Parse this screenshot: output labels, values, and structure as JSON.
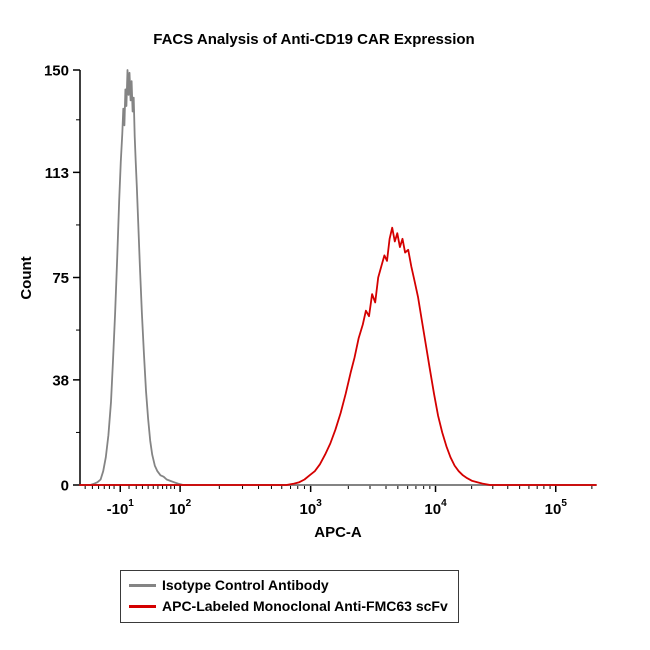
{
  "page": {
    "background": "#ffffff"
  },
  "chart_data": {
    "type": "line",
    "variant": "flow-cytometry-overlaid-histograms",
    "title": "FACS Analysis of Anti-CD19 CAR Expression",
    "xlabel": "APC-A",
    "ylabel": "Count",
    "ylim": [
      0,
      150
    ],
    "grid": "off",
    "legend_position": "bottom",
    "x_axis_scale": "logicle",
    "y_major_ticks": [
      0,
      38,
      75,
      113,
      150
    ],
    "y_minor_ticks": [
      19,
      56,
      94,
      132
    ],
    "x_major_ticks": [
      {
        "frac": 0.078,
        "base": "-10",
        "exp": "1"
      },
      {
        "frac": 0.194,
        "base": "10",
        "exp": "2"
      },
      {
        "frac": 0.447,
        "base": "10",
        "exp": "3"
      },
      {
        "frac": 0.689,
        "base": "10",
        "exp": "4"
      },
      {
        "frac": 0.922,
        "base": "10",
        "exp": "5"
      }
    ],
    "x_minor_ticks": [
      0.01,
      0.024,
      0.036,
      0.047,
      0.057,
      0.066,
      0.095,
      0.109,
      0.121,
      0.132,
      0.142,
      0.151,
      0.16,
      0.168,
      0.176,
      0.183,
      0.27,
      0.315,
      0.346,
      0.371,
      0.391,
      0.408,
      0.422,
      0.435,
      0.52,
      0.562,
      0.593,
      0.616,
      0.635,
      0.651,
      0.666,
      0.678,
      0.759,
      0.8,
      0.829,
      0.852,
      0.87,
      0.886,
      0.899,
      0.911,
      0.992
    ],
    "series": [
      {
        "name": "Isotype Control Antibody",
        "color": "#848484",
        "peak_x_frac": 0.092,
        "peak_count": 150,
        "points": [
          [
            0.0,
            0
          ],
          [
            0.02,
            0
          ],
          [
            0.028,
            0.5
          ],
          [
            0.034,
            1
          ],
          [
            0.04,
            2
          ],
          [
            0.045,
            5
          ],
          [
            0.05,
            10
          ],
          [
            0.055,
            18
          ],
          [
            0.06,
            30
          ],
          [
            0.064,
            45
          ],
          [
            0.068,
            62
          ],
          [
            0.072,
            82
          ],
          [
            0.076,
            103
          ],
          [
            0.079,
            117
          ],
          [
            0.082,
            127
          ],
          [
            0.084,
            136
          ],
          [
            0.086,
            130
          ],
          [
            0.088,
            143
          ],
          [
            0.09,
            137
          ],
          [
            0.092,
            150
          ],
          [
            0.094,
            141
          ],
          [
            0.096,
            149
          ],
          [
            0.098,
            139
          ],
          [
            0.1,
            146
          ],
          [
            0.102,
            135
          ],
          [
            0.104,
            140
          ],
          [
            0.106,
            126
          ],
          [
            0.108,
            117
          ],
          [
            0.11,
            108
          ],
          [
            0.113,
            94
          ],
          [
            0.116,
            79
          ],
          [
            0.12,
            62
          ],
          [
            0.124,
            47
          ],
          [
            0.128,
            34
          ],
          [
            0.132,
            24
          ],
          [
            0.136,
            16
          ],
          [
            0.14,
            11
          ],
          [
            0.145,
            7
          ],
          [
            0.15,
            5
          ],
          [
            0.156,
            3.5
          ],
          [
            0.162,
            3
          ],
          [
            0.168,
            2
          ],
          [
            0.175,
            1.5
          ],
          [
            0.182,
            1
          ],
          [
            0.19,
            0.5
          ],
          [
            0.2,
            0
          ],
          [
            1.0,
            0
          ]
        ]
      },
      {
        "name": "APC-Labeled Monoclonal Anti-FMC63 scFv",
        "color": "#d40000",
        "peak_x_frac": 0.605,
        "peak_count": 93,
        "points": [
          [
            0.0,
            0
          ],
          [
            0.4,
            0
          ],
          [
            0.415,
            0.5
          ],
          [
            0.425,
            1
          ],
          [
            0.435,
            2
          ],
          [
            0.445,
            3.5
          ],
          [
            0.455,
            5
          ],
          [
            0.465,
            7.5
          ],
          [
            0.475,
            11
          ],
          [
            0.485,
            15
          ],
          [
            0.495,
            20
          ],
          [
            0.505,
            26
          ],
          [
            0.515,
            33
          ],
          [
            0.525,
            41
          ],
          [
            0.532,
            46
          ],
          [
            0.54,
            53
          ],
          [
            0.548,
            58
          ],
          [
            0.554,
            63
          ],
          [
            0.56,
            61
          ],
          [
            0.566,
            69
          ],
          [
            0.572,
            66
          ],
          [
            0.578,
            75
          ],
          [
            0.584,
            79
          ],
          [
            0.59,
            83
          ],
          [
            0.595,
            81
          ],
          [
            0.6,
            89
          ],
          [
            0.605,
            93
          ],
          [
            0.61,
            88
          ],
          [
            0.615,
            91
          ],
          [
            0.62,
            86
          ],
          [
            0.625,
            89
          ],
          [
            0.63,
            84
          ],
          [
            0.636,
            85
          ],
          [
            0.642,
            79
          ],
          [
            0.648,
            74
          ],
          [
            0.655,
            68
          ],
          [
            0.662,
            60
          ],
          [
            0.67,
            51
          ],
          [
            0.678,
            42
          ],
          [
            0.686,
            33
          ],
          [
            0.694,
            25
          ],
          [
            0.702,
            19
          ],
          [
            0.71,
            14
          ],
          [
            0.718,
            10
          ],
          [
            0.726,
            7
          ],
          [
            0.734,
            5
          ],
          [
            0.742,
            3.5
          ],
          [
            0.75,
            2.5
          ],
          [
            0.76,
            1.5
          ],
          [
            0.77,
            1
          ],
          [
            0.78,
            0.5
          ],
          [
            0.795,
            0
          ],
          [
            1.0,
            0
          ]
        ]
      }
    ]
  }
}
